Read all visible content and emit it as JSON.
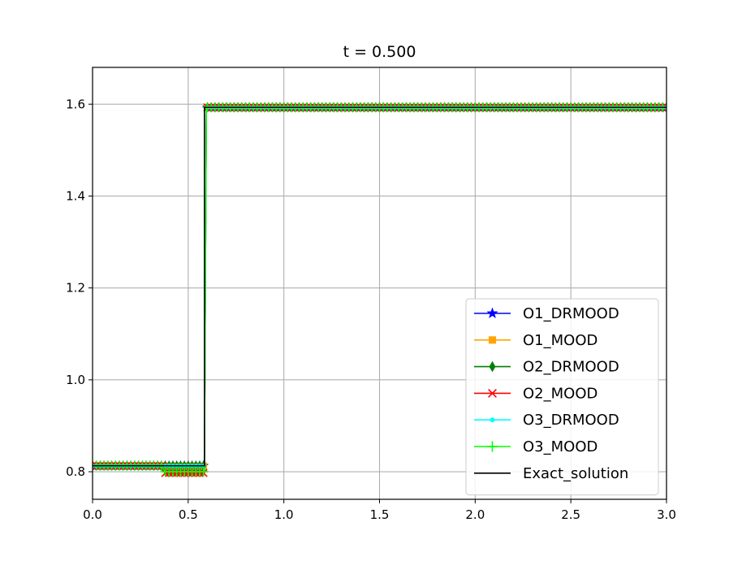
{
  "chart_data": {
    "type": "line",
    "title": "t = 0.500",
    "xlabel": "",
    "ylabel": "",
    "xlim": [
      0.0,
      3.0
    ],
    "ylim": [
      0.74,
      1.68
    ],
    "xticks": [
      0.0,
      0.5,
      1.0,
      1.5,
      2.0,
      2.5,
      3.0
    ],
    "xtick_labels": [
      "0.0",
      "0.5",
      "1.0",
      "1.5",
      "2.0",
      "2.5",
      "3.0"
    ],
    "yticks": [
      0.8,
      1.0,
      1.2,
      1.4,
      1.6
    ],
    "ytick_labels": [
      "0.8",
      "1.0",
      "1.2",
      "1.4",
      "1.6"
    ],
    "grid": true,
    "legend_position": "lower-right",
    "marker_spacing": 0.02,
    "series": [
      {
        "name": "O1_DRMOOD",
        "color": "#0000ff",
        "marker": "star",
        "points": [
          [
            0.0,
            0.813
          ],
          [
            0.585,
            0.813
          ],
          [
            0.59,
            1.2
          ],
          [
            0.595,
            1.593
          ],
          [
            3.0,
            1.593
          ]
        ]
      },
      {
        "name": "O1_MOOD",
        "color": "#ffa500",
        "marker": "square",
        "points": [
          [
            0.0,
            0.813
          ],
          [
            0.585,
            0.813
          ],
          [
            0.59,
            1.2
          ],
          [
            0.595,
            1.593
          ],
          [
            3.0,
            1.593
          ]
        ]
      },
      {
        "name": "O2_DRMOOD",
        "color": "#008000",
        "marker": "diamond",
        "points": [
          [
            0.0,
            0.813
          ],
          [
            0.585,
            0.813
          ],
          [
            0.59,
            1.2
          ],
          [
            0.595,
            1.593
          ],
          [
            3.0,
            1.593
          ]
        ]
      },
      {
        "name": "O2_MOOD",
        "color": "#ff0000",
        "marker": "x",
        "points": [
          [
            0.0,
            0.813
          ],
          [
            0.36,
            0.813
          ],
          [
            0.38,
            0.797
          ],
          [
            0.585,
            0.797
          ],
          [
            0.59,
            1.2
          ],
          [
            0.595,
            1.593
          ],
          [
            3.0,
            1.593
          ]
        ]
      },
      {
        "name": "O3_DRMOOD",
        "color": "#00ffff",
        "marker": "point",
        "points": [
          [
            0.0,
            0.813
          ],
          [
            0.585,
            0.813
          ],
          [
            0.59,
            1.2
          ],
          [
            0.595,
            1.593
          ],
          [
            3.0,
            1.593
          ]
        ]
      },
      {
        "name": "O3_MOOD",
        "color": "#00ff00",
        "marker": "plus",
        "points": [
          [
            0.0,
            0.813
          ],
          [
            0.36,
            0.813
          ],
          [
            0.38,
            0.8
          ],
          [
            0.585,
            0.8
          ],
          [
            0.59,
            1.2
          ],
          [
            0.595,
            1.593
          ],
          [
            3.0,
            1.593
          ]
        ]
      },
      {
        "name": "Exact_solution",
        "color": "#000000",
        "marker": "none",
        "points": [
          [
            0.0,
            0.813
          ],
          [
            0.585,
            0.813
          ],
          [
            0.585,
            1.593
          ],
          [
            3.0,
            1.593
          ]
        ]
      }
    ]
  }
}
